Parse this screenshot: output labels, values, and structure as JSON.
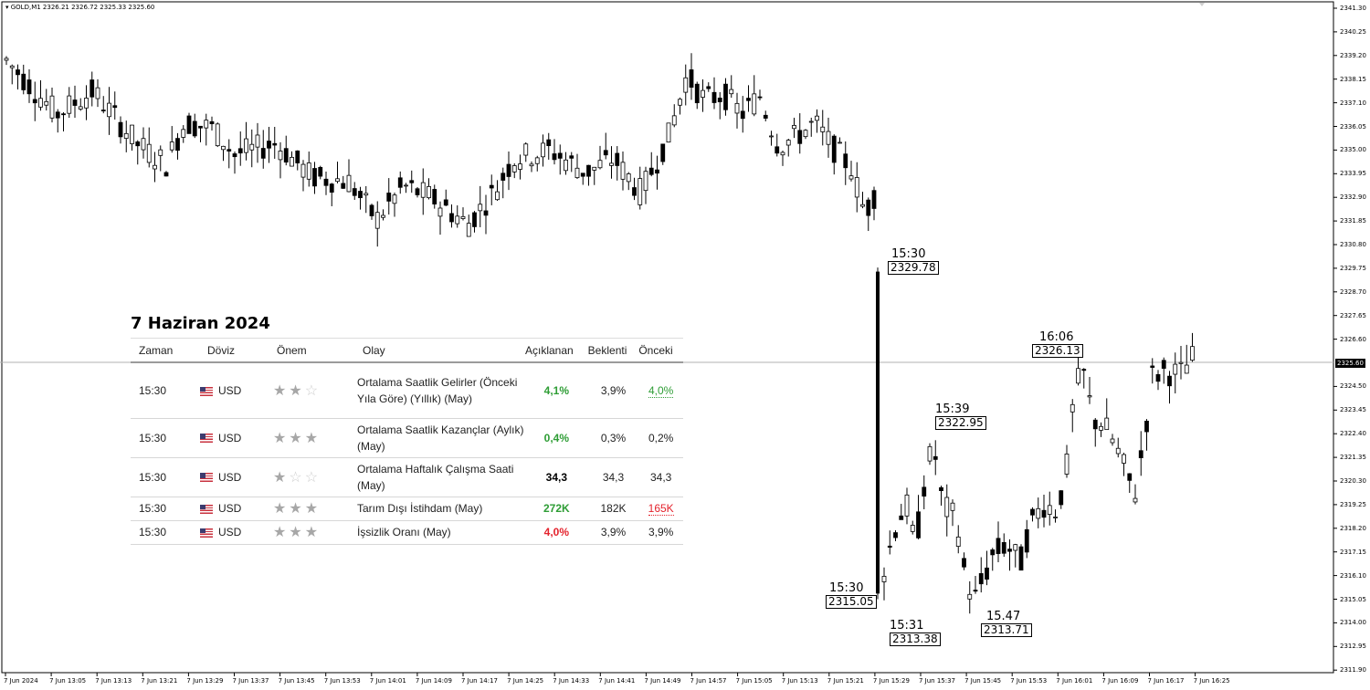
{
  "symbol_header": "GOLD,M1  2326.21 2326.72 2325.33 2325.60",
  "current_price": "2325.60",
  "y_ticks": [
    "2341.30",
    "2340.25",
    "2339.20",
    "2338.15",
    "2337.10",
    "2336.05",
    "2335.00",
    "2333.95",
    "2332.90",
    "2331.85",
    "2330.80",
    "2329.75",
    "2328.70",
    "2327.65",
    "2326.60",
    "2324.50",
    "2323.45",
    "2322.40",
    "2321.35",
    "2320.30",
    "2319.25",
    "2318.20",
    "2317.15",
    "2316.10",
    "2315.05",
    "2314.00",
    "2312.95",
    "2311.90"
  ],
  "x_ticks": [
    "7 Jun 2024",
    "7 Jun 13:05",
    "7 Jun 13:13",
    "7 Jun 13:21",
    "7 Jun 13:29",
    "7 Jun 13:37",
    "7 Jun 13:45",
    "7 Jun 13:53",
    "7 Jun 14:01",
    "7 Jun 14:09",
    "7 Jun 14:17",
    "7 Jun 14:25",
    "7 Jun 14:33",
    "7 Jun 14:41",
    "7 Jun 14:49",
    "7 Jun 14:57",
    "7 Jun 15:05",
    "7 Jun 15:13",
    "7 Jun 15:21",
    "7 Jun 15:29",
    "7 Jun 15:37",
    "7 Jun 15:45",
    "7 Jun 15:53",
    "7 Jun 16:01",
    "7 Jun 16:09",
    "7 Jun 16:17",
    "7 Jun 16:25"
  ],
  "annotations": [
    {
      "time": "15:30",
      "price": "2329.78"
    },
    {
      "time": "15:30",
      "price": "2315.05"
    },
    {
      "time": "15:31",
      "price": "2313.38"
    },
    {
      "time": "15:39",
      "price": "2322.95"
    },
    {
      "time": "15.47",
      "price": "2313.71"
    },
    {
      "time": "16:06",
      "price": "2326.13"
    }
  ],
  "calendar": {
    "title": "7 Haziran 2024",
    "headers": [
      "Zaman",
      "Döviz",
      "Önem",
      "Olay",
      "Açıklanan",
      "Beklenti",
      "Önceki"
    ],
    "rows": [
      {
        "time": "15:30",
        "currency": "USD",
        "stars": 2,
        "event": "Ortalama Saatlik Gelirler (Önceki Yıla Göre) (Yıllık) (May)",
        "actual": "4,1%",
        "forecast": "3,9%",
        "previous": "4,0%"
      },
      {
        "time": "15:30",
        "currency": "USD",
        "stars": 3,
        "event": "Ortalama Saatlik Kazançlar (Aylık) (May)",
        "actual": "0,4%",
        "forecast": "0,3%",
        "previous": "0,2%"
      },
      {
        "time": "15:30",
        "currency": "USD",
        "stars": 1,
        "event": "Ortalama Haftalık Çalışma Saati (May)",
        "actual": "34,3",
        "forecast": "34,3",
        "previous": "34,3"
      },
      {
        "time": "15:30",
        "currency": "USD",
        "stars": 3,
        "event": "Tarım Dışı İstihdam (May)",
        "actual": "272K",
        "forecast": "182K",
        "previous": "165K"
      },
      {
        "time": "15:30",
        "currency": "USD",
        "stars": 3,
        "event": "İşsizlik Oranı (May)",
        "actual": "4,0%",
        "forecast": "3,9%",
        "previous": "3,9%"
      }
    ]
  },
  "chart_data": {
    "type": "candlestick",
    "symbol": "GOLD",
    "timeframe": "M1",
    "ylim": [
      2311.9,
      2341.3
    ],
    "key_points": [
      {
        "time": "15:30",
        "high": 2329.78,
        "low": 2315.05
      },
      {
        "time": "15:31",
        "low": 2313.38
      },
      {
        "time": "15:39",
        "high": 2322.95
      },
      {
        "time": "15:47",
        "low": 2313.71
      },
      {
        "time": "16:06",
        "high": 2326.13
      }
    ],
    "last": {
      "open": 2326.21,
      "high": 2326.72,
      "low": 2325.33,
      "close": 2325.6
    }
  }
}
